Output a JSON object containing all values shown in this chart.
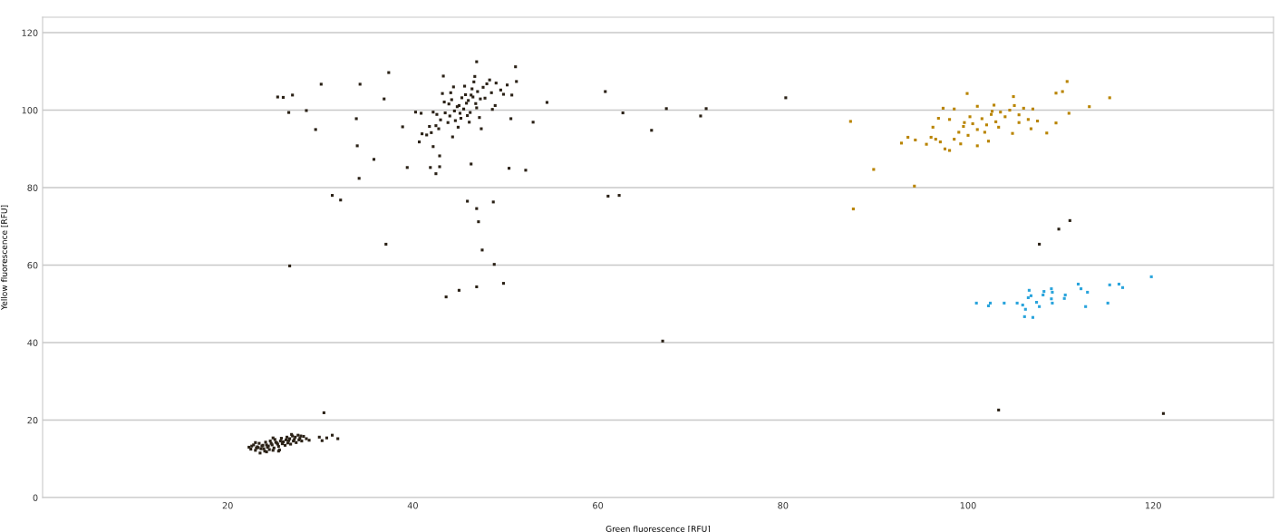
{
  "chart_data": {
    "type": "scatter",
    "xlabel": "Green fluorescence [RFU]",
    "ylabel": "Yellow fluorescence [RFU]",
    "xlim": [
      0,
      133
    ],
    "ylim": [
      0,
      124
    ],
    "xticks": [
      20,
      40,
      60,
      80,
      100,
      120
    ],
    "yticks": [
      0,
      20,
      40,
      60,
      80,
      100,
      120
    ],
    "grid": "y",
    "marker": "square",
    "series": [
      {
        "color": "#2a2116",
        "x": [
          22.6,
          23.1,
          23.7,
          24.2,
          24.7,
          25.2,
          25.7,
          26.3,
          26.7,
          27.3,
          27.9,
          23.3,
          23.9,
          24.4,
          24.9,
          25.4,
          25.9,
          26.5,
          27.1,
          27.7,
          22.3,
          22.5,
          22.8,
          23.0,
          23.2,
          23.4,
          23.5,
          23.6,
          23.8,
          24.0,
          24.1,
          24.3,
          24.5,
          24.6,
          24.8,
          25.0,
          25.1,
          25.3,
          25.5,
          25.6,
          25.8,
          26.0,
          26.2,
          26.4,
          26.6,
          26.8,
          27.0,
          27.2,
          27.4,
          27.6,
          27.8,
          28.0,
          28.2,
          28.5,
          28.8,
          24.2,
          25.5,
          23.0,
          26.9,
          24.9,
          29.9,
          30.2,
          30.7,
          31.9,
          30.4,
          31.3,
          25.4,
          26.0,
          27.0,
          26.6,
          28.5,
          29.5,
          30.1,
          26.7,
          31.3,
          32.2,
          33.9,
          34.0,
          34.2,
          34.3,
          35.8,
          36.9,
          37.1,
          37.4,
          38.9,
          39.4,
          40.3,
          40.9,
          41.9,
          42.5,
          42.9,
          42.9,
          42.2,
          43.3,
          46.3,
          45.9,
          46.9,
          47.1,
          47.5,
          48.8,
          48.7,
          46.9,
          46.7,
          47.4,
          48.6,
          50.4,
          50.6,
          51.1,
          51.2,
          50.7,
          52.2,
          53.0,
          54.5,
          60.8,
          61.1,
          62.3,
          62.7,
          43.6,
          45.0,
          46.9,
          49.8,
          65.8,
          67.4,
          71.1,
          71.7,
          80.3,
          107.7,
          109.8,
          111.0,
          67.0,
          103.3,
          121.1,
          44.0,
          44.5,
          45.0,
          45.5,
          46.0,
          46.5,
          47.0,
          45.2,
          44.8,
          46.2,
          46.8,
          47.3,
          45.7,
          44.2,
          43.5,
          43.0,
          42.5,
          42.0,
          41.5,
          41.0,
          42.8,
          43.8,
          44.6,
          45.9,
          46.4,
          47.6,
          48.0,
          48.5,
          49.0,
          49.5,
          48.3,
          47.8,
          46.9,
          45.3,
          44.1,
          43.9,
          45.6,
          44.4,
          43.2,
          42.6,
          44.9,
          44.3,
          46.1,
          47.2,
          43.4,
          45.1,
          46.6,
          48.9,
          49.8,
          50.2,
          42.2,
          41.8,
          40.7,
          45.8,
          46.3
        ],
        "values": [
          13.3,
          12.8,
          13.3,
          13.6,
          14.0,
          14.3,
          14.6,
          14.9,
          15.2,
          15.6,
          15.9,
          12.9,
          12.6,
          13.3,
          12.2,
          13.8,
          13.9,
          14.1,
          14.6,
          14.9,
          13.0,
          12.5,
          13.6,
          12.2,
          13.1,
          14.0,
          11.5,
          12.6,
          13.5,
          12.0,
          14.3,
          13.0,
          12.4,
          14.6,
          13.6,
          12.8,
          15.0,
          14.1,
          13.2,
          12.3,
          15.3,
          14.4,
          13.5,
          15.6,
          14.7,
          13.8,
          15.9,
          15.0,
          14.2,
          16.1,
          15.3,
          14.6,
          15.8,
          15.2,
          14.8,
          11.8,
          12.0,
          14.2,
          16.3,
          15.4,
          15.6,
          14.7,
          15.4,
          15.2,
          21.9,
          16.1,
          103.4,
          103.3,
          103.9,
          99.4,
          99.9,
          95.0,
          106.7,
          59.8,
          78.0,
          76.8,
          97.8,
          90.8,
          82.4,
          106.7,
          87.3,
          102.9,
          65.4,
          109.7,
          95.7,
          85.2,
          99.5,
          99.2,
          85.2,
          83.6,
          85.4,
          88.2,
          90.6,
          108.8,
          86.1,
          76.5,
          74.6,
          71.2,
          63.9,
          60.2,
          76.3,
          112.5,
          108.7,
          95.2,
          100.2,
          85.0,
          97.8,
          111.2,
          107.4,
          103.9,
          84.5,
          96.9,
          102.0,
          104.8,
          77.8,
          78.0,
          99.3,
          51.8,
          53.5,
          54.4,
          55.3,
          94.8,
          100.4,
          98.5,
          100.4,
          103.2,
          65.4,
          69.3,
          71.5,
          40.4,
          22.6,
          21.7,
          98.5,
          99.8,
          101.2,
          100.3,
          102.5,
          103.4,
          104.8,
          97.9,
          100.9,
          99.4,
          101.7,
          102.9,
          104.0,
          102.7,
          99.3,
          97.5,
          96.0,
          94.2,
          93.6,
          93.9,
          95.2,
          96.8,
          97.3,
          98.6,
          105.5,
          105.9,
          106.8,
          104.5,
          107.0,
          105.2,
          107.8,
          103.1,
          100.6,
          103.2,
          104.5,
          101.6,
          106.2,
          106.0,
          104.3,
          98.9,
          95.6,
          93.1,
          96.9,
          98.1,
          102.1,
          99.2,
          107.3,
          101.2,
          104.1,
          106.5,
          99.5,
          95.8,
          91.8,
          101.8,
          103.9
        ]
      },
      {
        "color": "#b98400",
        "x": [
          87.3,
          89.8,
          87.6,
          94.2,
          92.8,
          99.9,
          110.7,
          110.2,
          109.5,
          115.3,
          113.1,
          108.5,
          109.5,
          110.9,
          104.9,
          95.5,
          96.0,
          96.5,
          97.0,
          97.5,
          98.0,
          98.5,
          99.0,
          99.5,
          100.0,
          100.5,
          101.0,
          101.5,
          102.0,
          102.5,
          103.0,
          103.5,
          104.0,
          104.5,
          105.0,
          105.5,
          106.0,
          106.5,
          107.0,
          102.2,
          101.0,
          99.2,
          98.0,
          96.8,
          97.3,
          98.5,
          101.0,
          102.8,
          103.3,
          104.8,
          105.5,
          100.2,
          99.6,
          94.3,
          93.5,
          96.2,
          102.6,
          101.8,
          106.8,
          107.5
        ],
        "values": [
          97.1,
          84.7,
          74.5,
          80.4,
          91.5,
          104.3,
          107.4,
          104.8,
          104.4,
          103.2,
          100.9,
          94.1,
          96.7,
          99.2,
          103.5,
          91.2,
          93.0,
          92.5,
          91.8,
          90.0,
          89.6,
          92.5,
          94.3,
          95.8,
          93.5,
          96.5,
          95.0,
          97.8,
          96.2,
          98.9,
          97.0,
          99.5,
          98.3,
          100.0,
          101.2,
          98.8,
          100.5,
          97.6,
          100.3,
          92.0,
          90.8,
          91.3,
          97.6,
          97.9,
          100.5,
          100.3,
          101.0,
          101.3,
          95.6,
          94.0,
          96.8,
          98.3,
          96.8,
          92.3,
          93.0,
          95.6,
          99.7,
          94.3,
          95.2,
          97.2
        ]
      },
      {
        "color": "#2aa4dc",
        "x": [
          100.9,
          102.2,
          102.4,
          103.9,
          105.3,
          105.9,
          106.2,
          106.1,
          107.0,
          106.6,
          106.5,
          106.8,
          107.4,
          107.7,
          108.1,
          108.2,
          109.0,
          109.0,
          109.1,
          109.1,
          110.4,
          110.5,
          111.9,
          112.2,
          112.7,
          112.9,
          115.1,
          115.3,
          116.3,
          116.7,
          119.8
        ],
        "values": [
          50.2,
          49.5,
          50.2,
          50.2,
          50.2,
          49.7,
          48.6,
          46.7,
          46.5,
          53.5,
          51.6,
          52.1,
          50.4,
          49.3,
          52.3,
          53.2,
          53.9,
          51.3,
          50.2,
          53.0,
          51.4,
          52.3,
          55.1,
          53.9,
          49.3,
          53.0,
          50.2,
          54.9,
          55.1,
          54.2,
          57.0
        ]
      }
    ]
  }
}
